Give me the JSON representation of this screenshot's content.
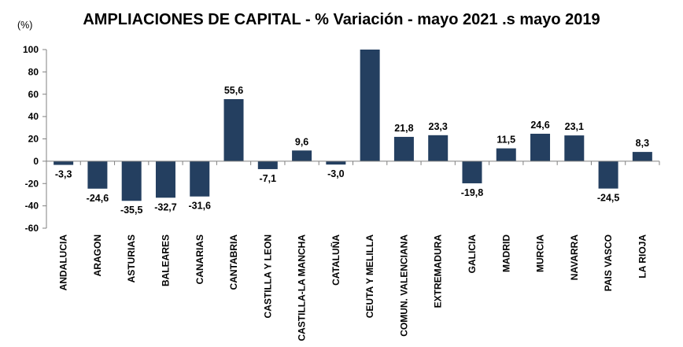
{
  "chart_data": {
    "type": "bar",
    "title": "AMPLIACIONES DE CAPITAL - % Variación - mayo 2021 .s mayo 2019",
    "unit_label": "(%)",
    "xlabel": "",
    "ylabel": "",
    "ylim": [
      -60,
      100
    ],
    "yticks": [
      100,
      80,
      60,
      40,
      20,
      0,
      -20,
      -40,
      -60
    ],
    "grid": false,
    "categories": [
      "ANDALUCIA",
      "ARAGON",
      "ASTURIAS",
      "BALEARES",
      "CANARIAS",
      "CANTABRIA",
      "CASTILLA Y LEON",
      "CASTILLA-LA MANCHA",
      "CATALUÑA",
      "CEUTA Y MELILLA",
      "COMUN. VALENCIANA",
      "EXTREMADURA",
      "GALICIA",
      "MADRID",
      "MURCIA",
      "NAVARRA",
      "PAIS VASCO",
      "LA RIOJA"
    ],
    "values": [
      -3.3,
      -24.6,
      -35.5,
      -32.7,
      -31.6,
      55.6,
      -7.1,
      9.6,
      -3.0,
      100,
      21.8,
      23.3,
      -19.8,
      11.5,
      24.6,
      23.1,
      -24.5,
      8.3
    ],
    "data_labels": [
      "-3,3",
      "-24,6",
      "-35,5",
      "-32,7",
      "-31,6",
      "55,6",
      "-7,1",
      "9,6",
      "-3,0",
      "",
      "21,8",
      "23,3",
      "-19,8",
      "11,5",
      "24,6",
      "23,1",
      "-24,5",
      "8,3"
    ],
    "bar_color": "#243f60"
  }
}
